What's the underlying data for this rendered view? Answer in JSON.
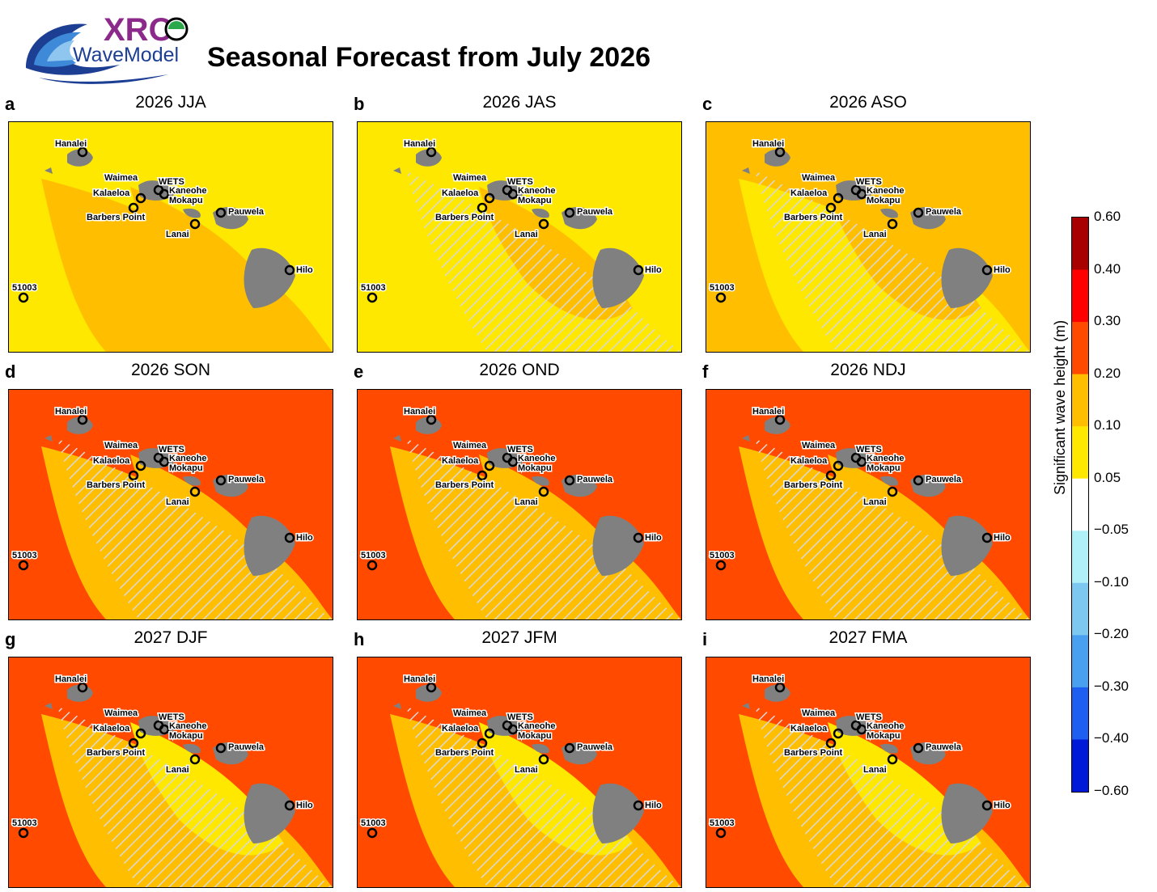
{
  "title": "Seasonal Forecast from July 2026",
  "logo": {
    "top_text": "XRO",
    "bottom_text": "WaveModel"
  },
  "colorbar": {
    "label": "Significant wave height (m)",
    "ticks": [
      "0.60",
      "0.40",
      "0.30",
      "0.20",
      "0.10",
      "0.05",
      "−0.05",
      "−0.10",
      "−0.20",
      "−0.30",
      "−0.40",
      "−0.60"
    ],
    "colors": [
      "#a80000",
      "#ff0000",
      "#ff4a00",
      "#ffbf00",
      "#ffe800",
      "#ffffff",
      "#b0f0f8",
      "#7cc8f0",
      "#4aa0f0",
      "#1e5ef0",
      "#0018d8"
    ]
  },
  "stations": [
    "Hanalei",
    "Waimea",
    "WETS",
    "Kalaeloa",
    "Kaneohe",
    "Mokapu",
    "Barbers Point",
    "Pauwela",
    "Lanai",
    "Hilo",
    "51003"
  ],
  "panels": [
    {
      "letter": "a",
      "title": "2026 JJA",
      "bg": "#ffe800",
      "mid": "#ffbf00",
      "near": "#ffbf00",
      "hatch": false
    },
    {
      "letter": "b",
      "title": "2026 JAS",
      "bg": "#ffe800",
      "mid": "#ffe800",
      "near": "#ffbf00",
      "hatch": true
    },
    {
      "letter": "c",
      "title": "2026 ASO",
      "bg": "#ffbf00",
      "mid": "#ffe800",
      "near": "#ffbf00",
      "hatch": true
    },
    {
      "letter": "d",
      "title": "2026 SON",
      "bg": "#ff4a00",
      "mid": "#ffbf00",
      "near": "#ffbf00",
      "hatch": true
    },
    {
      "letter": "e",
      "title": "2026 OND",
      "bg": "#ff4a00",
      "mid": "#ffbf00",
      "near": "#ffbf00",
      "hatch": true
    },
    {
      "letter": "f",
      "title": "2026 NDJ",
      "bg": "#ff4a00",
      "mid": "#ffbf00",
      "near": "#ffbf00",
      "hatch": true
    },
    {
      "letter": "g",
      "title": "2027 DJF",
      "bg": "#ff4a00",
      "mid": "#ffbf00",
      "near": "#ffe800",
      "hatch": true
    },
    {
      "letter": "h",
      "title": "2027 JFM",
      "bg": "#ff4a00",
      "mid": "#ffbf00",
      "near": "#ffe800",
      "hatch": true
    },
    {
      "letter": "i",
      "title": "2027 FMA",
      "bg": "#ff4a00",
      "mid": "#ffbf00",
      "near": "#ffe800",
      "hatch": true
    }
  ]
}
